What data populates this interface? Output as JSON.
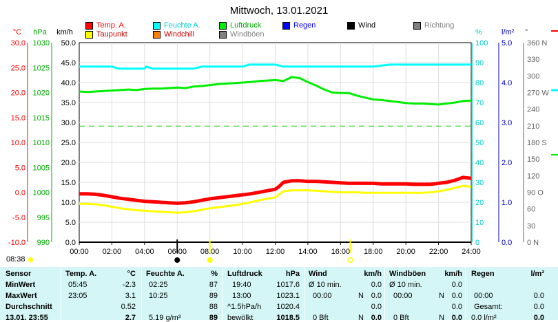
{
  "chart_data": {
    "type": "line",
    "title": "Mittwoch, 13.01.2021",
    "x_ticks": [
      "00:00",
      "02:00",
      "04:00",
      "06:00",
      "08:00",
      "10:00",
      "12:00",
      "14:00",
      "16:00",
      "18:00",
      "20:00",
      "22:00",
      "24:00"
    ],
    "xlim": [
      0,
      24
    ],
    "axes": [
      {
        "unit": "°C",
        "color": "#ff0000",
        "lim": [
          -10,
          30
        ],
        "ticks": [
          "30.0",
          "25.0",
          "20.0",
          "15.0",
          "10.0",
          "5.0",
          "0.0",
          "-5.0",
          "-10.0"
        ]
      },
      {
        "unit": "hPa",
        "color": "#00aa00",
        "lim": [
          990,
          1030
        ],
        "ticks": [
          "1030",
          "1025",
          "1020",
          "1015",
          "1010",
          "1005",
          "1000",
          "995",
          "990"
        ]
      },
      {
        "unit": "km/h",
        "color": "#000000",
        "lim": [
          0,
          50
        ],
        "ticks": [
          "50.0",
          "45.0",
          "40.0",
          "35.0",
          "30.0",
          "25.0",
          "20.0",
          "15.0",
          "10.0",
          "5.0",
          "0.0"
        ]
      },
      {
        "unit": "%",
        "color": "#00cccc",
        "lim": [
          0,
          100
        ],
        "ticks": [
          "100",
          "90",
          "80",
          "70",
          "60",
          "50",
          "40",
          "30",
          "20",
          "10",
          "0"
        ]
      },
      {
        "unit": "l/m²",
        "color": "#0000cc",
        "lim": [
          0,
          5
        ],
        "ticks": [
          "5.0",
          "4.0",
          "3.0",
          "2.0",
          "1.0",
          "0.0"
        ]
      },
      {
        "unit": "°",
        "color": "#606060",
        "lim": [
          0,
          360
        ],
        "ticks": [
          "360 N",
          "330",
          "300",
          "270 W",
          "240",
          "210",
          "180 S",
          "150",
          "120",
          "90 O",
          "60",
          "30",
          "0 N"
        ]
      }
    ],
    "legend": [
      {
        "name": "Temp. A.",
        "color": "#ff0000"
      },
      {
        "name": "Feuchte A.",
        "color": "#00ffff"
      },
      {
        "name": "Luftdruck",
        "color": "#00ee00"
      },
      {
        "name": "Regen",
        "color": "#0000ff"
      },
      {
        "name": "Wind",
        "color": "#000000"
      },
      {
        "name": "Richtung",
        "color": "#808080"
      },
      {
        "name": "Taupunkt",
        "color": "#ffff00"
      },
      {
        "name": "Windchill",
        "color": "#ff8000"
      },
      {
        "name": "Windböen",
        "color": "#808080"
      }
    ],
    "series": [
      {
        "name": "Temp. A.",
        "axis": "°C",
        "color": "#ff0000",
        "x": [
          0,
          0.5,
          1,
          1.5,
          2,
          2.5,
          3,
          3.5,
          4,
          4.5,
          5,
          5.5,
          6,
          6.5,
          7,
          7.5,
          8,
          8.5,
          9,
          9.5,
          10,
          10.5,
          11,
          11.5,
          12,
          12.25,
          12.5,
          13,
          13.5,
          14,
          14.5,
          15,
          15.5,
          16,
          16.5,
          17,
          17.5,
          18,
          18.5,
          19,
          19.5,
          20,
          20.5,
          21,
          21.5,
          22,
          22.5,
          23,
          23.5,
          24
        ],
        "values": [
          -0.3,
          -0.3,
          -0.4,
          -0.6,
          -0.9,
          -1.2,
          -1.4,
          -1.6,
          -1.8,
          -1.9,
          -2.0,
          -2.1,
          -2.2,
          -2.1,
          -1.9,
          -1.6,
          -1.3,
          -1.1,
          -0.9,
          -0.7,
          -0.5,
          -0.3,
          0.0,
          0.3,
          0.6,
          1.2,
          2.0,
          2.3,
          2.3,
          2.2,
          2.2,
          2.1,
          2.0,
          1.9,
          1.8,
          1.8,
          1.8,
          1.8,
          1.7,
          1.7,
          1.7,
          1.7,
          1.6,
          1.6,
          1.6,
          1.8,
          2.0,
          2.4,
          3.0,
          2.8
        ]
      },
      {
        "name": "Taupunkt",
        "axis": "°C",
        "color": "#ffff00",
        "x": [
          0,
          0.5,
          1,
          1.5,
          2,
          2.5,
          3,
          3.5,
          4,
          4.5,
          5,
          5.5,
          6,
          6.5,
          7,
          7.5,
          8,
          8.5,
          9,
          9.5,
          10,
          10.5,
          11,
          11.5,
          12,
          12.25,
          12.5,
          13,
          13.5,
          14,
          14.5,
          15,
          15.5,
          16,
          16.5,
          17,
          17.5,
          18,
          18.5,
          19,
          19.5,
          20,
          20.5,
          21,
          21.5,
          22,
          22.5,
          23,
          23.5,
          24
        ],
        "values": [
          -2.3,
          -2.3,
          -2.4,
          -2.6,
          -2.9,
          -3.2,
          -3.4,
          -3.6,
          -3.7,
          -3.8,
          -3.9,
          -4.0,
          -4.1,
          -4.0,
          -3.8,
          -3.5,
          -3.2,
          -3.0,
          -2.8,
          -2.6,
          -2.3,
          -2.0,
          -1.6,
          -1.3,
          -1.0,
          -0.4,
          0.2,
          0.4,
          0.4,
          0.4,
          0.3,
          0.2,
          0.1,
          0.0,
          0.0,
          0.0,
          -0.1,
          -0.1,
          -0.1,
          -0.1,
          -0.1,
          -0.1,
          -0.1,
          -0.1,
          0.0,
          0.2,
          0.5,
          0.9,
          1.3,
          1.1
        ]
      },
      {
        "name": "Feuchte A.",
        "axis": "%",
        "color": "#00ffff",
        "x": [
          0,
          1,
          2,
          2.4,
          3,
          4,
          4.1,
          4.5,
          5,
          6,
          7,
          7.5,
          8,
          9,
          10,
          10.4,
          11,
          12,
          12.5,
          13,
          13.5,
          14,
          15,
          16,
          17,
          18,
          19,
          20,
          21,
          22,
          23,
          24
        ],
        "values": [
          88,
          88,
          88,
          87,
          87,
          87,
          88,
          87,
          87,
          87,
          87,
          88,
          88,
          88,
          88,
          89,
          89,
          89,
          88,
          88,
          88,
          88,
          88,
          88,
          88,
          88,
          89,
          89,
          89,
          89,
          89,
          89
        ]
      },
      {
        "name": "Luftdruck",
        "axis": "hPa",
        "color": "#00ee00",
        "x": [
          0,
          0.5,
          1,
          1.5,
          2,
          2.5,
          3,
          3.5,
          4,
          4.5,
          5,
          5.5,
          6,
          6.5,
          7,
          7.5,
          8,
          8.5,
          9,
          9.5,
          10,
          10.5,
          11,
          11.5,
          12,
          12.5,
          13,
          13.5,
          14,
          14.5,
          15,
          15.5,
          16,
          16.5,
          17,
          17.5,
          18,
          18.5,
          19,
          19.5,
          20,
          20.5,
          21,
          21.5,
          22,
          22.5,
          23,
          23.5,
          24
        ],
        "values": [
          1020.2,
          1020.1,
          1020.2,
          1020.3,
          1020.4,
          1020.5,
          1020.6,
          1020.5,
          1020.7,
          1020.8,
          1020.8,
          1020.9,
          1021.0,
          1020.9,
          1021.2,
          1021.3,
          1021.5,
          1021.7,
          1021.8,
          1021.9,
          1022.0,
          1022.1,
          1022.3,
          1022.4,
          1022.5,
          1022.3,
          1023.1,
          1022.9,
          1022.1,
          1021.4,
          1020.6,
          1020.0,
          1019.9,
          1019.9,
          1019.4,
          1019.0,
          1018.6,
          1018.5,
          1018.3,
          1018.1,
          1017.9,
          1017.8,
          1017.8,
          1017.7,
          1017.6,
          1017.8,
          1018.0,
          1018.3,
          1018.4
        ]
      },
      {
        "name": "Wind",
        "axis": "km/h",
        "color": "#000000",
        "x": [
          0,
          24
        ],
        "values": [
          0,
          0
        ]
      }
    ],
    "reference_line": {
      "axis": "km/h",
      "value": 29.1,
      "color": "#00cc00",
      "style": "dashed"
    },
    "markers": [
      {
        "hour": 6,
        "color": "#000000",
        "kind": "moon"
      },
      {
        "hour": 8,
        "color": "#ffff00",
        "kind": "sun"
      },
      {
        "hour": 16.6,
        "color": "#ffff00",
        "kind": "sunset"
      }
    ]
  },
  "current_time": "08:38",
  "table": {
    "sensor": {
      "header": "Sensor",
      "rows": [
        "MinWert",
        "MaxWert",
        "Durchschnitt",
        "13.01. 23:55"
      ]
    },
    "temp": {
      "header": "Temp. A.",
      "unit": "°C",
      "rows": [
        {
          "t": "05:45",
          "v": "-2.3"
        },
        {
          "t": "23:05",
          "v": "3.1"
        },
        {
          "t": "",
          "v": "0.52"
        },
        {
          "t": "",
          "v": "2.7"
        }
      ]
    },
    "hum": {
      "header": "Feuchte A.",
      "unit": "%",
      "rows": [
        {
          "t": "02:25",
          "v": "87"
        },
        {
          "t": "10:25",
          "v": "89"
        },
        {
          "t": "",
          "v": "88"
        },
        {
          "t": "5.19 g/m³",
          "v": "89"
        }
      ]
    },
    "press": {
      "header": "Luftdruck",
      "unit": "hPa",
      "rows": [
        {
          "t": "19:40",
          "v": "1017.6"
        },
        {
          "t": "13:00",
          "v": "1023.1"
        },
        {
          "t": "^1.5hPa/h",
          "v": "1020.4"
        },
        {
          "t": "bewölkt",
          "v": "1018.5"
        }
      ]
    },
    "wind": {
      "header": "Wind",
      "unit": "km/h",
      "rows": [
        {
          "t": "Ø 10 min.",
          "d": "",
          "v": "0.0"
        },
        {
          "t": "00:00",
          "d": "N",
          "v": "0.0"
        },
        {
          "t": "",
          "d": "",
          "v": "0.0"
        },
        {
          "t": "0 Bft",
          "d": "N",
          "v": "0.0"
        }
      ]
    },
    "gust": {
      "header": "Windböen",
      "unit": "km/h",
      "rows": [
        {
          "t": "Ø 10 min.",
          "d": "",
          "v": "0.0"
        },
        {
          "t": "00:00",
          "d": "N",
          "v": "0.0"
        },
        {
          "t": "",
          "d": "",
          "v": "0.0"
        },
        {
          "t": "0 Bft",
          "d": "N",
          "v": "0.0"
        }
      ]
    },
    "rain": {
      "header": "Regen",
      "unit": "l/m²",
      "rows": [
        {
          "t": "",
          "v": ""
        },
        {
          "t": "00:00",
          "v": "0.0"
        },
        {
          "t": "Gesamt:",
          "v": "0.0"
        },
        {
          "t": "0.0 l/m²",
          "v": "0.0"
        }
      ]
    }
  }
}
